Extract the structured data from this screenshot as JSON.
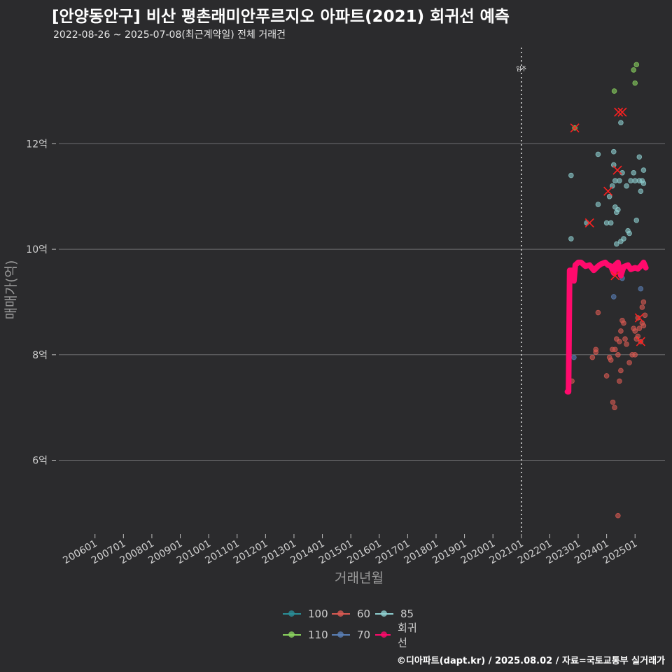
{
  "title": "[안양동안구] 비산 평촌래미안푸르지오 아파트(2021) 회귀선 예측",
  "subtitle": "2022-08-26 ~ 2025-07-08(최근계약일) 전체 거래건",
  "footer": "©디아파트(dapt.kr) / 2025.08.02 / 자료=국토교통부 실거래가",
  "chart_data": {
    "type": "scatter",
    "xlabel": "거래년월",
    "ylabel": "매매가(억)",
    "x_unit": "years (fractional)",
    "xlim": [
      2004.48,
      2026.3
    ],
    "ylim": [
      4.6,
      13.85
    ],
    "x_ticks": [
      "200601",
      "200701",
      "200801",
      "200901",
      "201001",
      "201101",
      "201201",
      "201301",
      "201401",
      "201501",
      "201601",
      "201701",
      "201801",
      "201901",
      "202001",
      "202101",
      "202201",
      "202301",
      "202401",
      "202501"
    ],
    "y_ticks": [
      {
        "value": 6,
        "label": "6억"
      },
      {
        "value": 8,
        "label": "8억"
      },
      {
        "value": 10,
        "label": "10억"
      },
      {
        "value": 12,
        "label": "12억"
      }
    ],
    "vline": {
      "x": 2021.0,
      "label": "입주"
    },
    "series": [
      {
        "name": "100",
        "color": "#2a8f98",
        "points": []
      },
      {
        "name": "110",
        "color": "#8bd35f",
        "points": [
          [
            2022.88,
            12.3
          ],
          [
            2024.27,
            13.0
          ],
          [
            2024.95,
            13.4
          ],
          [
            2025.05,
            13.5
          ],
          [
            2025.0,
            13.15
          ]
        ]
      },
      {
        "name": "60",
        "color": "#d95a52",
        "points": [
          [
            2022.65,
            7.3
          ],
          [
            2022.78,
            7.5
          ],
          [
            2023.5,
            7.95
          ],
          [
            2023.62,
            8.05
          ],
          [
            2023.62,
            8.1
          ],
          [
            2023.7,
            8.8
          ],
          [
            2024.0,
            7.6
          ],
          [
            2024.1,
            7.95
          ],
          [
            2024.15,
            7.9
          ],
          [
            2024.2,
            8.1
          ],
          [
            2024.22,
            7.1
          ],
          [
            2024.28,
            7.0
          ],
          [
            2024.3,
            8.1
          ],
          [
            2024.35,
            8.3
          ],
          [
            2024.4,
            8.0
          ],
          [
            2024.45,
            8.25
          ],
          [
            2024.45,
            7.5
          ],
          [
            2024.5,
            7.7
          ],
          [
            2024.5,
            8.45
          ],
          [
            2024.55,
            8.65
          ],
          [
            2024.6,
            8.6
          ],
          [
            2024.65,
            8.3
          ],
          [
            2024.7,
            8.2
          ],
          [
            2024.8,
            7.85
          ],
          [
            2024.9,
            8.0
          ],
          [
            2024.95,
            8.5
          ],
          [
            2025.0,
            8.45
          ],
          [
            2025.0,
            8.0
          ],
          [
            2025.05,
            8.3
          ],
          [
            2025.1,
            8.35
          ],
          [
            2025.1,
            8.7
          ],
          [
            2025.15,
            8.5
          ],
          [
            2025.2,
            8.25
          ],
          [
            2025.25,
            8.6
          ],
          [
            2025.25,
            8.9
          ],
          [
            2025.3,
            9.0
          ],
          [
            2025.3,
            8.55
          ],
          [
            2025.35,
            8.75
          ],
          [
            2024.4,
            4.95
          ]
        ]
      },
      {
        "name": "70",
        "color": "#5a7fb5",
        "points": [
          [
            2022.85,
            7.95
          ],
          [
            2024.25,
            9.1
          ],
          [
            2024.55,
            9.45
          ],
          [
            2025.2,
            9.25
          ]
        ]
      },
      {
        "name": "85",
        "color": "#8ecfd0",
        "points": [
          [
            2022.75,
            10.2
          ],
          [
            2022.75,
            11.4
          ],
          [
            2023.3,
            10.5
          ],
          [
            2023.7,
            11.8
          ],
          [
            2023.7,
            10.85
          ],
          [
            2024.0,
            10.5
          ],
          [
            2024.1,
            11.0
          ],
          [
            2024.15,
            10.5
          ],
          [
            2024.2,
            11.2
          ],
          [
            2024.25,
            11.85
          ],
          [
            2024.25,
            11.6
          ],
          [
            2024.3,
            10.8
          ],
          [
            2024.3,
            11.3
          ],
          [
            2024.35,
            10.7
          ],
          [
            2024.35,
            10.1
          ],
          [
            2024.4,
            10.75
          ],
          [
            2024.45,
            11.3
          ],
          [
            2024.5,
            12.4
          ],
          [
            2024.5,
            10.15
          ],
          [
            2024.55,
            11.45
          ],
          [
            2024.6,
            10.2
          ],
          [
            2024.7,
            11.2
          ],
          [
            2024.75,
            10.35
          ],
          [
            2024.8,
            10.3
          ],
          [
            2024.85,
            11.3
          ],
          [
            2024.95,
            11.45
          ],
          [
            2025.0,
            11.3
          ],
          [
            2025.05,
            10.55
          ],
          [
            2025.15,
            11.3
          ],
          [
            2025.15,
            11.75
          ],
          [
            2025.2,
            11.1
          ],
          [
            2025.25,
            11.3
          ],
          [
            2025.3,
            11.5
          ],
          [
            2025.3,
            11.25
          ]
        ]
      },
      {
        "name": "회귀선",
        "color": "#ff0a6c",
        "points": [
          [
            2022.62,
            7.3
          ],
          [
            2022.66,
            7.3
          ],
          [
            2022.7,
            9.6
          ],
          [
            2022.8,
            9.6
          ],
          [
            2022.85,
            9.4
          ],
          [
            2022.9,
            9.7
          ],
          [
            2023.0,
            9.75
          ],
          [
            2023.1,
            9.75
          ],
          [
            2023.25,
            9.68
          ],
          [
            2023.4,
            9.7
          ],
          [
            2023.55,
            9.6
          ],
          [
            2023.7,
            9.68
          ],
          [
            2023.8,
            9.72
          ],
          [
            2023.95,
            9.75
          ],
          [
            2024.05,
            9.7
          ],
          [
            2024.15,
            9.68
          ],
          [
            2024.25,
            9.55
          ],
          [
            2024.3,
            9.7
          ],
          [
            2024.4,
            9.75
          ],
          [
            2024.5,
            9.5
          ],
          [
            2024.6,
            9.67
          ],
          [
            2024.75,
            9.7
          ],
          [
            2024.85,
            9.62
          ],
          [
            2025.0,
            9.65
          ],
          [
            2025.1,
            9.63
          ],
          [
            2025.2,
            9.68
          ],
          [
            2025.3,
            9.75
          ],
          [
            2025.38,
            9.65
          ]
        ]
      }
    ],
    "highlights": [
      [
        2022.88,
        12.3
      ],
      [
        2024.42,
        12.6
      ],
      [
        2024.55,
        12.6
      ],
      [
        2024.38,
        11.5
      ],
      [
        2024.05,
        11.1
      ],
      [
        2023.4,
        10.5
      ],
      [
        2024.3,
        9.5
      ],
      [
        2025.15,
        8.7
      ],
      [
        2025.2,
        8.25
      ]
    ]
  }
}
